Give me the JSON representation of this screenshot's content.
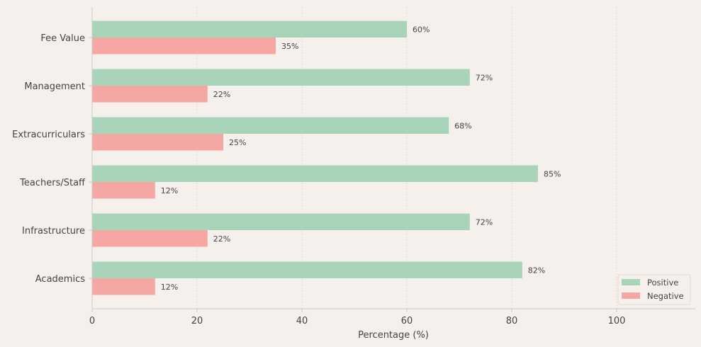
{
  "chart_data": {
    "type": "bar",
    "orientation": "horizontal",
    "categories": [
      "Fee Value",
      "Management",
      "Extracurriculars",
      "Teachers/Staff",
      "Infrastructure",
      "Academics"
    ],
    "series": [
      {
        "name": "Positive",
        "values": [
          60,
          72,
          68,
          85,
          72,
          82
        ],
        "color": "#a8d5ba"
      },
      {
        "name": "Negative",
        "values": [
          35,
          22,
          25,
          12,
          22,
          12
        ],
        "color": "#f5a8a3"
      }
    ],
    "data_labels": {
      "Positive": [
        "60%",
        "72%",
        "68%",
        "85%",
        "72%",
        "82%"
      ],
      "Negative": [
        "35%",
        "22%",
        "25%",
        "12%",
        "22%",
        "12%"
      ]
    },
    "title": "",
    "xlabel": "Percentage (%)",
    "ylabel": "",
    "xlim": [
      0,
      115
    ],
    "xticks": [
      0,
      20,
      40,
      60,
      80,
      100
    ],
    "grid": true,
    "legend_position": "bottom-right"
  },
  "colors": {
    "background": "#f5f0ec",
    "grid": "#dcd8d4",
    "axis": "#cfcac6",
    "text": "#444444"
  }
}
